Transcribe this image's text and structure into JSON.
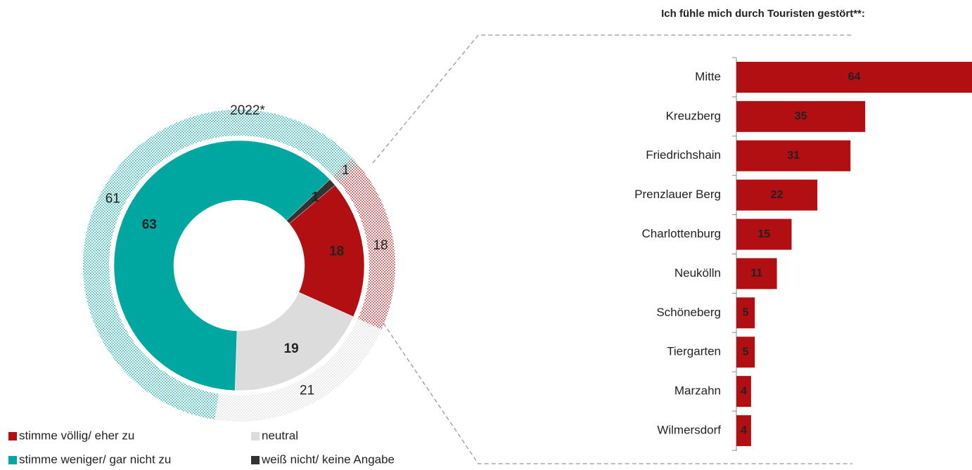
{
  "chart_data": [
    {
      "type": "donut",
      "categories": [
        "stimme völlig/ eher zu",
        "neutral",
        "stimme weniger/ gar nicht zu",
        "weiß nicht/ keine Angabe"
      ],
      "colors": [
        "#b10f12",
        "#dcdcdc",
        "#00a6a0",
        "#333333"
      ],
      "series": [
        {
          "values": [
            18,
            19,
            63,
            1
          ]
        },
        {
          "name": "2022*",
          "values": [
            18,
            21,
            61,
            1
          ],
          "pattern": "dotted"
        }
      ]
    },
    {
      "type": "hbar",
      "title": "Ich fühle mich durch Touristen gestört**:",
      "categories": [
        "Mitte",
        "Kreuzberg",
        "Friedrichshain",
        "Prenzlauer Berg",
        "Charlottenburg",
        "Neukölln",
        "Schöneberg",
        "Tiergarten",
        "Marzahn",
        "Wilmersdorf"
      ],
      "values": [
        64,
        35,
        31,
        22,
        15,
        11,
        5,
        5,
        4,
        4
      ],
      "color": "#b10f12",
      "xlim": [
        0,
        64
      ]
    }
  ]
}
